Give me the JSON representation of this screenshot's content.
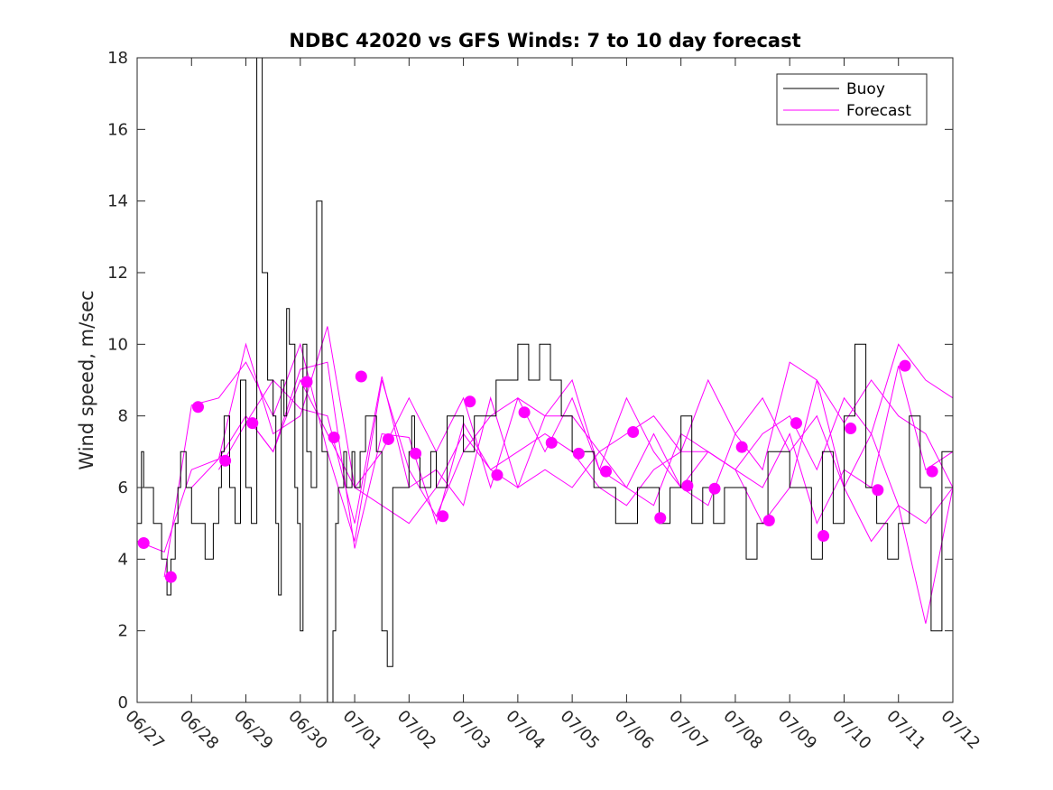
{
  "chart_data": {
    "type": "line",
    "title": "NDBC 42020 vs GFS Winds: 7 to 10 day forecast",
    "xlabel": "",
    "ylabel": "Wind speed, m/sec",
    "xlim": [
      "06/27",
      "07/12"
    ],
    "ylim": [
      0,
      18
    ],
    "x_ticks": [
      "06/27",
      "06/28",
      "06/29",
      "06/30",
      "07/01",
      "07/02",
      "07/03",
      "07/04",
      "07/05",
      "07/06",
      "07/07",
      "07/08",
      "07/09",
      "07/10",
      "07/11",
      "07/12"
    ],
    "y_ticks": [
      0,
      2,
      4,
      6,
      8,
      10,
      12,
      14,
      16,
      18
    ],
    "legend": {
      "position": "top-right",
      "entries": [
        "Buoy",
        "Forecast"
      ]
    },
    "colors": {
      "buoy": "#000000",
      "forecast": "#ff00ff"
    },
    "series": [
      {
        "name": "Buoy",
        "type": "line",
        "x_days": [
          0.0,
          0.08,
          0.12,
          0.2,
          0.3,
          0.45,
          0.55,
          0.62,
          0.7,
          0.75,
          0.8,
          0.9,
          1.0,
          1.1,
          1.25,
          1.4,
          1.5,
          1.55,
          1.6,
          1.7,
          1.8,
          1.9,
          2.0,
          2.1,
          2.2,
          2.3,
          2.4,
          2.5,
          2.55,
          2.6,
          2.65,
          2.7,
          2.75,
          2.8,
          2.9,
          2.95,
          3.0,
          3.05,
          3.12,
          3.2,
          3.3,
          3.4,
          3.5,
          3.6,
          3.65,
          3.7,
          3.8,
          3.85,
          3.9,
          3.95,
          4.0,
          4.1,
          4.2,
          4.3,
          4.4,
          4.5,
          4.6,
          4.7,
          4.8,
          4.9,
          5.0,
          5.05,
          5.1,
          5.2,
          5.3,
          5.4,
          5.5,
          5.7,
          5.9,
          6.0,
          6.2,
          6.4,
          6.6,
          6.8,
          7.0,
          7.2,
          7.4,
          7.6,
          7.8,
          8.0,
          8.2,
          8.4,
          8.6,
          8.8,
          9.0,
          9.2,
          9.4,
          9.6,
          9.8,
          10.0,
          10.2,
          10.4,
          10.6,
          10.8,
          11.0,
          11.2,
          11.4,
          11.6,
          11.8,
          12.0,
          12.2,
          12.4,
          12.6,
          12.8,
          13.0,
          13.2,
          13.4,
          13.6,
          13.8,
          14.0,
          14.2,
          14.4,
          14.6,
          14.8,
          15.0
        ],
        "y": [
          5,
          7,
          6,
          6,
          5,
          4,
          3,
          4,
          5,
          6,
          7,
          6,
          5,
          5,
          4,
          5,
          6,
          7,
          8,
          6,
          5,
          9,
          6,
          5,
          18,
          12,
          9,
          8,
          5,
          3,
          9,
          8,
          11,
          10,
          6,
          5,
          2,
          10,
          7,
          6,
          14,
          7,
          0,
          2,
          5,
          6,
          7,
          6,
          6,
          7,
          6,
          7,
          8,
          8,
          7,
          2,
          1,
          6,
          6,
          6,
          7,
          8,
          7,
          6,
          6,
          7,
          6,
          8,
          8,
          7,
          8,
          8,
          9,
          9,
          10,
          9,
          10,
          9,
          8,
          7,
          7,
          6,
          6,
          5,
          5,
          6,
          6,
          5,
          6,
          8,
          5,
          6,
          5,
          6,
          6,
          4,
          5,
          7,
          7,
          6,
          6,
          4,
          7,
          5,
          8,
          10,
          6,
          5,
          4,
          5,
          8,
          6,
          2,
          7,
          7
        ]
      },
      {
        "name": "Forecast",
        "type": "line",
        "runs": [
          {
            "x_days": [
              0.0,
              0.5,
              1.0,
              1.5,
              2.0,
              2.5,
              3.0,
              3.5,
              4.0,
              4.5,
              5.0,
              5.5,
              6.0,
              6.5,
              7.0,
              7.5,
              8.0,
              8.5,
              9.0,
              9.5,
              10.0,
              10.5,
              11.0,
              11.5,
              12.0,
              12.5,
              13.0,
              13.5,
              14.0,
              14.5,
              15.0
            ],
            "y": [
              4.5,
              4.2,
              6.5,
              6.8,
              8.0,
              7.0,
              9.0,
              7.5,
              6.0,
              5.5,
              5.0,
              6.0,
              7.5,
              6.5,
              7.0,
              7.5,
              7.0,
              6.0,
              5.5,
              6.5,
              7.0,
              7.0,
              6.5,
              6.0,
              7.5,
              5.0,
              6.5,
              6.0,
              9.4,
              6.5,
              7.0
            ]
          },
          {
            "x_days": [
              0.5,
              1.0,
              1.5,
              2.0,
              2.5,
              3.0,
              3.5,
              4.0,
              4.5,
              5.0,
              5.5,
              6.0,
              6.5,
              7.0,
              7.5,
              8.0,
              8.5,
              9.0,
              9.5,
              10.0,
              10.5,
              11.0,
              11.5,
              12.0,
              12.5,
              13.0,
              13.5,
              14.0,
              14.5,
              15.0
            ],
            "y": [
              3.5,
              8.3,
              8.5,
              9.5,
              8.0,
              10.0,
              7.0,
              4.5,
              9.0,
              6.5,
              5.2,
              7.0,
              8.0,
              8.5,
              7.0,
              8.5,
              6.5,
              6.0,
              7.5,
              6.0,
              7.0,
              6.5,
              7.5,
              8.0,
              6.5,
              8.5,
              7.5,
              10.0,
              9.0,
              8.5
            ]
          },
          {
            "x_days": [
              1.0,
              1.5,
              2.0,
              2.5,
              3.0,
              3.5,
              4.0,
              4.5,
              5.0,
              5.5,
              6.0,
              6.5,
              7.0,
              7.5,
              8.0,
              8.5,
              9.0,
              9.5,
              10.0,
              10.5,
              11.0,
              11.5,
              12.0,
              12.5,
              13.0,
              13.5,
              14.0,
              14.5,
              15.0
            ],
            "y": [
              6.0,
              6.8,
              10.0,
              7.5,
              8.0,
              10.5,
              6.0,
              7.0,
              8.5,
              7.0,
              8.5,
              6.0,
              8.5,
              8.0,
              8.0,
              7.0,
              7.5,
              8.0,
              7.0,
              9.0,
              7.5,
              6.5,
              9.5,
              9.0,
              7.8,
              9.0,
              8.0,
              7.5,
              6.0
            ]
          },
          {
            "x_days": [
              1.5,
              2.0,
              2.5,
              3.0,
              3.5,
              4.0,
              4.5,
              5.0,
              5.5,
              6.0,
              6.5,
              7.0,
              7.5,
              8.0,
              8.5,
              9.0,
              9.5,
              10.0,
              10.5,
              11.0,
              11.5,
              12.0,
              12.5,
              13.0,
              13.5,
              14.0,
              14.5,
              15.0
            ],
            "y": [
              6.5,
              7.8,
              9.0,
              8.2,
              8.0,
              5.0,
              9.1,
              6.0,
              6.5,
              5.5,
              8.5,
              6.0,
              8.0,
              9.0,
              6.5,
              8.5,
              7.0,
              6.0,
              5.5,
              7.5,
              8.5,
              7.0,
              8.0,
              6.0,
              4.5,
              5.5,
              5.0,
              6.0
            ]
          },
          {
            "x_days": [
              2.0,
              2.5,
              3.0,
              3.5,
              4.0,
              4.5,
              5.0,
              5.5,
              6.0,
              6.5,
              7.0,
              7.5,
              8.0,
              8.5,
              9.0,
              9.5,
              10.0,
              10.5,
              11.0,
              11.5,
              12.0,
              12.5,
              13.0,
              13.5,
              14.0,
              14.5,
              15.0
            ],
            "y": [
              8.0,
              7.0,
              9.3,
              9.5,
              4.3,
              7.5,
              7.4,
              5.0,
              7.8,
              6.5,
              6.0,
              6.5,
              6.0,
              7.0,
              6.0,
              5.5,
              7.5,
              7.0,
              6.5,
              5.0,
              6.0,
              9.0,
              6.0,
              7.5,
              5.5,
              2.2,
              6.0
            ]
          }
        ]
      },
      {
        "name": "Forecast markers",
        "type": "scatter",
        "x_days": [
          0.12,
          0.62,
          1.12,
          1.62,
          2.12,
          3.12,
          3.62,
          4.12,
          4.62,
          5.12,
          5.62,
          6.12,
          6.62,
          7.12,
          7.62,
          8.12,
          8.62,
          9.12,
          9.62,
          10.12,
          10.62,
          11.12,
          11.62,
          12.12,
          12.62,
          13.12,
          13.62,
          14.12,
          14.62
        ],
        "y": [
          4.45,
          3.5,
          8.25,
          6.75,
          7.8,
          8.95,
          7.4,
          9.1,
          7.35,
          6.95,
          5.2,
          8.4,
          6.35,
          8.1,
          7.25,
          6.95,
          6.45,
          7.55,
          5.15,
          6.05,
          5.97,
          7.13,
          5.08,
          7.8,
          4.65,
          7.65,
          5.93,
          9.4,
          6.45
        ]
      }
    ]
  }
}
